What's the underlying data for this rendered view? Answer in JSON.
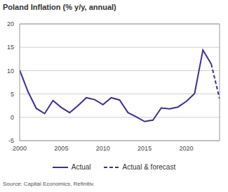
{
  "chart_data": {
    "type": "line",
    "title": "Poland Inflation (% y/y, annual)",
    "source": "Source: Capital Economics, Refinitiv.",
    "x": [
      2000,
      2001,
      2002,
      2003,
      2004,
      2005,
      2006,
      2007,
      2008,
      2009,
      2010,
      2011,
      2012,
      2013,
      2014,
      2015,
      2016,
      2017,
      2018,
      2019,
      2020,
      2021,
      2022,
      2023,
      2024
    ],
    "series": [
      {
        "name": "Actual",
        "color": "#3d2f96",
        "line_style": "solid",
        "values": [
          10.1,
          5.5,
          1.9,
          0.8,
          3.6,
          2.1,
          1.0,
          2.5,
          4.2,
          3.8,
          2.7,
          4.2,
          3.7,
          1.0,
          0.1,
          -0.9,
          -0.6,
          2.0,
          1.8,
          2.2,
          3.4,
          5.1,
          14.4,
          11.4,
          null
        ]
      },
      {
        "name": "Actual & forecast",
        "color": "#3d2f96",
        "line_style": "dashed",
        "values": [
          null,
          null,
          null,
          null,
          null,
          null,
          null,
          null,
          null,
          null,
          null,
          null,
          null,
          null,
          null,
          null,
          null,
          null,
          null,
          null,
          null,
          null,
          null,
          11.4,
          4.0
        ]
      }
    ],
    "xlim": [
      2000,
      2024
    ],
    "xticks": [
      2000,
      2005,
      2010,
      2015,
      2020
    ],
    "ylim": [
      -5,
      20
    ],
    "yticks": [
      -5,
      0,
      5,
      10,
      15,
      20
    ],
    "grid": true,
    "legend": "bottom"
  }
}
